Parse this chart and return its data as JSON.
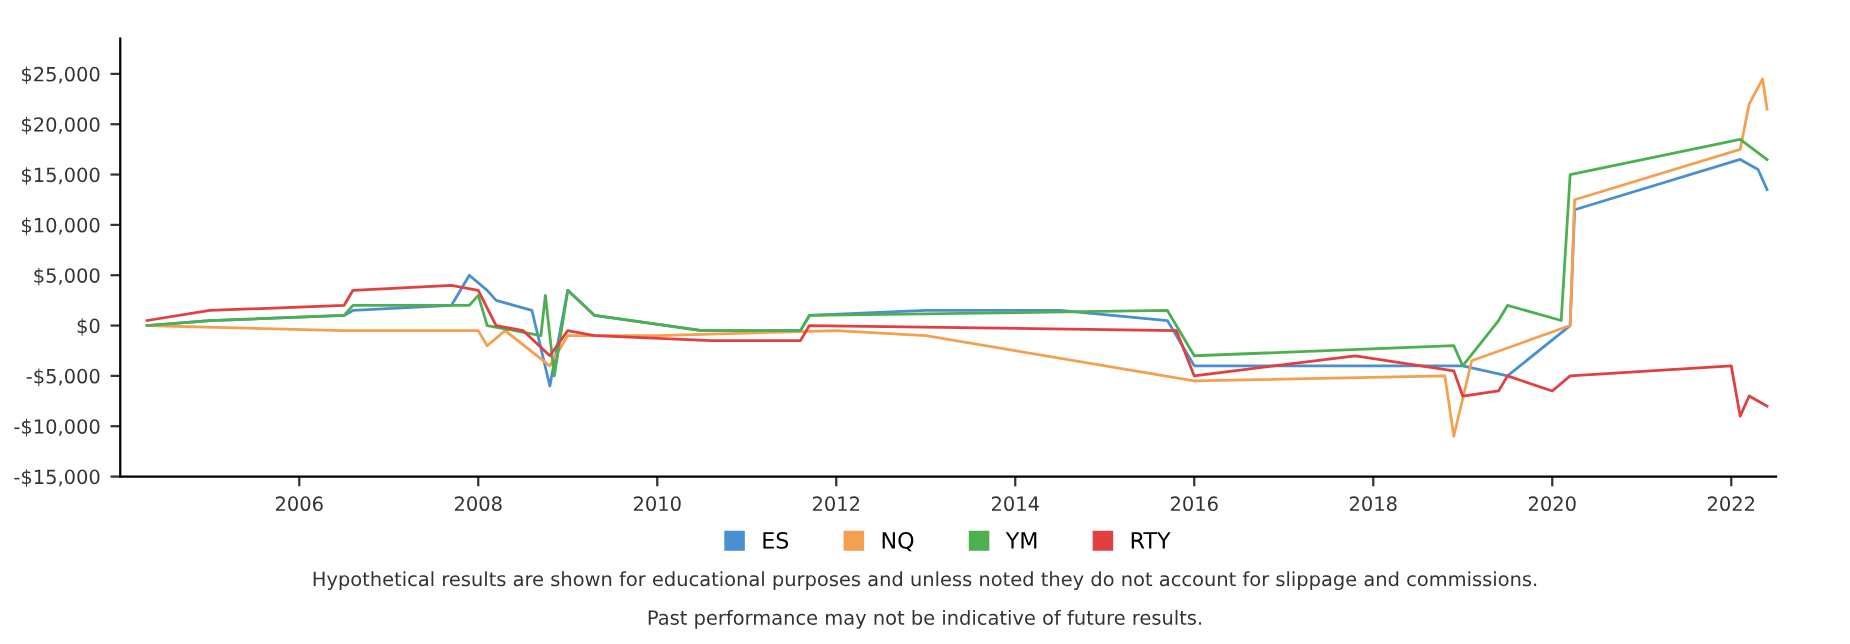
{
  "chart_data": {
    "type": "line",
    "xlim": [
      2004.0,
      2022.5
    ],
    "xticks": [
      2006,
      2008,
      2010,
      2012,
      2014,
      2016,
      2018,
      2020,
      2022
    ],
    "ylim": [
      -15000,
      28500
    ],
    "yticks": [
      {
        "value": -15000,
        "label": "-$15,000"
      },
      {
        "value": -10000,
        "label": "-$10,000"
      },
      {
        "value": -5000,
        "label": "-$5,000"
      },
      {
        "value": 0,
        "label": "$0"
      },
      {
        "value": 5000,
        "label": "$5,000"
      },
      {
        "value": 10000,
        "label": "$10,000"
      },
      {
        "value": 15000,
        "label": "$15,000"
      },
      {
        "value": 20000,
        "label": "$20,000"
      },
      {
        "value": 25000,
        "label": "$25,000"
      }
    ],
    "grid": false,
    "legend": "bottom",
    "marker": "none",
    "line_style": "solid",
    "series": [
      {
        "name": "ES",
        "color": "#4a90d0",
        "x": [
          2004.3,
          2005,
          2006.5,
          2006.6,
          2007.7,
          2007.9,
          2008.1,
          2008.2,
          2008.6,
          2008.8,
          2009.0,
          2009.3,
          2010.5,
          2011.6,
          2011.7,
          2013,
          2014.5,
          2015.7,
          2016,
          2019,
          2019.5,
          2020.2,
          2020.25,
          2022.1,
          2022.3,
          2022.4
        ],
        "values": [
          0,
          500,
          1000,
          1500,
          2000,
          5000,
          3500,
          2500,
          1500,
          -6000,
          3500,
          1000,
          -500,
          -500,
          1000,
          1500,
          1500,
          500,
          -4000,
          -4000,
          -5000,
          0,
          11500,
          16500,
          15500,
          13500
        ]
      },
      {
        "name": "NQ",
        "color": "#f5a050",
        "x": [
          2004.3,
          2006.5,
          2008,
          2008.1,
          2008.3,
          2008.8,
          2009,
          2010,
          2012,
          2013,
          2016,
          2018.8,
          2018.9,
          2019.1,
          2020.2,
          2020.25,
          2022.1,
          2022.2,
          2022.35,
          2022.4
        ],
        "values": [
          0,
          -500,
          -500,
          -2000,
          -500,
          -4000,
          -1000,
          -1000,
          -500,
          -1000,
          -5500,
          -5000,
          -11000,
          -3500,
          0,
          12500,
          17500,
          22000,
          24500,
          21500
        ]
      },
      {
        "name": "YM",
        "color": "#4caf50",
        "x": [
          2004.3,
          2005,
          2006.5,
          2006.6,
          2007.9,
          2008.0,
          2008.1,
          2008.7,
          2008.75,
          2008.85,
          2009,
          2009.3,
          2010.5,
          2011.6,
          2011.7,
          2015.7,
          2016,
          2018.9,
          2019,
          2019.4,
          2019.5,
          2020.1,
          2020.2,
          2022.1,
          2022.4
        ],
        "values": [
          0,
          500,
          1000,
          2000,
          2000,
          3000,
          0,
          -1000,
          3000,
          -5000,
          3500,
          1000,
          -500,
          -500,
          1000,
          1500,
          -3000,
          -2000,
          -4000,
          500,
          2000,
          500,
          15000,
          18500,
          16500
        ]
      },
      {
        "name": "RTY",
        "color": "#e04040",
        "x": [
          2004.3,
          2005,
          2006.5,
          2006.6,
          2007.7,
          2008.0,
          2008.2,
          2008.5,
          2008.8,
          2009,
          2009.3,
          2010.6,
          2011.6,
          2011.7,
          2015.8,
          2016,
          2017.8,
          2018.9,
          2019,
          2019.4,
          2019.5,
          2020,
          2020.2,
          2022,
          2022.1,
          2022.2,
          2022.4
        ],
        "values": [
          500,
          1500,
          2000,
          3500,
          4000,
          3500,
          0,
          -500,
          -3000,
          -500,
          -1000,
          -1500,
          -1500,
          0,
          -500,
          -5000,
          -3000,
          -4500,
          -7000,
          -6500,
          -5000,
          -6500,
          -5000,
          -4000,
          -9000,
          -7000,
          -8000
        ]
      }
    ],
    "annotations": [
      "Hypothetical results are shown for educational purposes and unless noted they do not account for slippage and commissions.",
      "Past performance may not be indicative of future results."
    ]
  }
}
